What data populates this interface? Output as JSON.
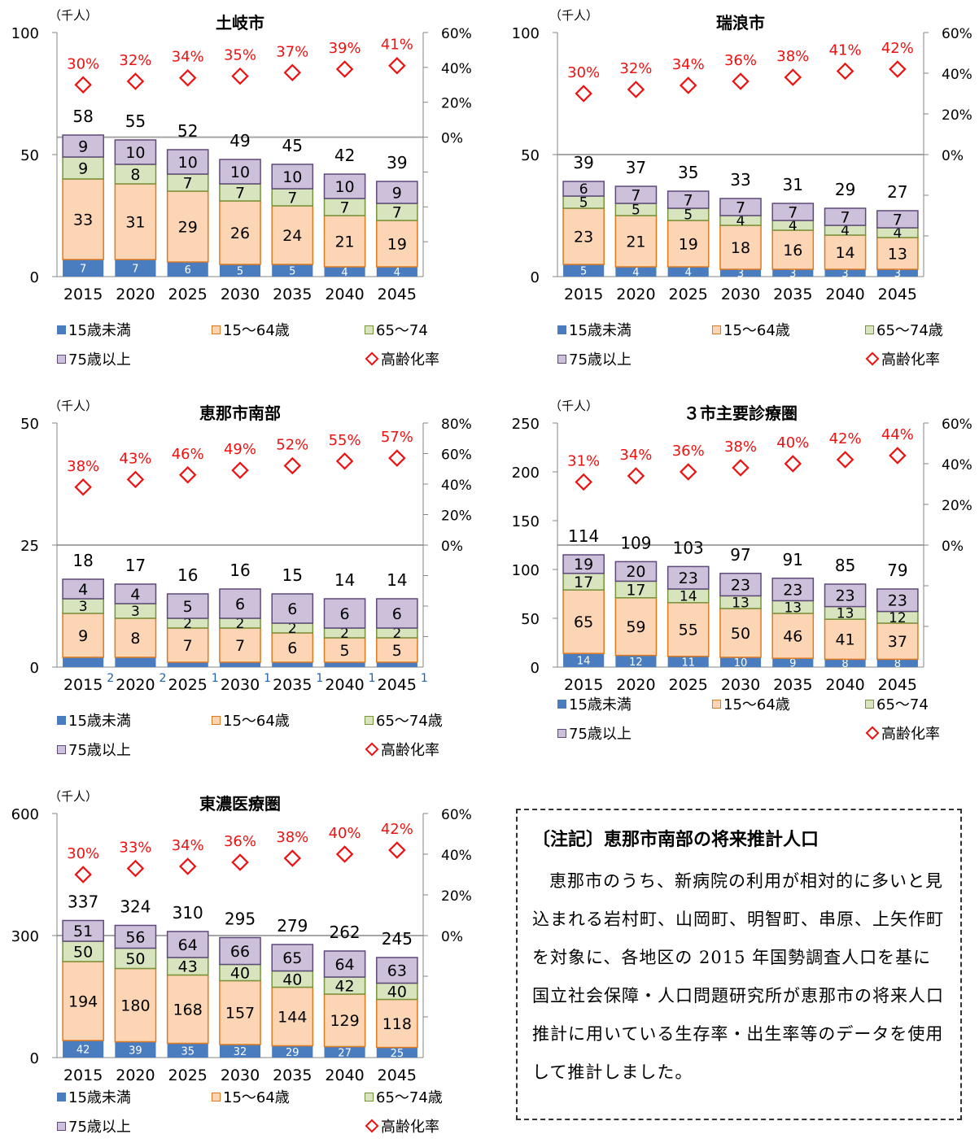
{
  "unit_label": "（千人）",
  "legend": {
    "under15": "15歳未満",
    "age15_64": "15～64歳",
    "age65_74": "65～74歳",
    "age65_74_short": "65～74",
    "over75": "75歳以上",
    "aging_rate": "高齢化率"
  },
  "colors": {
    "under15": "#4a7cc0",
    "age15_64": "#fcd5b4",
    "age15_64_border": "#e07a1f",
    "age65_74": "#d7e4bd",
    "age65_74_border": "#77933c",
    "over75": "#ccc0da",
    "over75_border": "#5f497a",
    "aging_rate": "#ee1111",
    "small_label": "#1f5fb0"
  },
  "note": {
    "title": "〔注記〕恵那市南部の将来推計人口",
    "body": "恵那市のうち、新病院の利用が相対的に多いと見込まれる岩村町、山岡町、明智町、串原、上矢作町を対象に、各地区の 2015 年国勢調査人口を基に国立社会保障・人口問題研究所が恵那市の将来人口推計に用いている生存率・出生率等のデータを使用して推計しました。"
  },
  "chart_data": [
    {
      "id": "toki",
      "type": "bar",
      "title": "土岐市",
      "categories": [
        "2015",
        "2020",
        "2025",
        "2030",
        "2035",
        "2040",
        "2045"
      ],
      "ylim": [
        0,
        100
      ],
      "yticks": [
        0,
        50,
        100
      ],
      "y2lim": [
        -80,
        60
      ],
      "y2ticks": [
        0,
        20,
        40,
        60
      ],
      "series": [
        {
          "name": "15歳未満",
          "values": [
            7,
            7,
            6,
            5,
            5,
            4,
            4
          ]
        },
        {
          "name": "15～64歳",
          "values": [
            33,
            31,
            29,
            26,
            24,
            21,
            19
          ]
        },
        {
          "name": "65～74歳",
          "values": [
            9,
            8,
            7,
            7,
            7,
            7,
            7
          ]
        },
        {
          "name": "75歳以上",
          "values": [
            9,
            10,
            10,
            10,
            10,
            10,
            9
          ]
        }
      ],
      "totals": [
        58,
        55,
        52,
        49,
        45,
        42,
        39
      ],
      "aging_rate": [
        30,
        32,
        34,
        35,
        37,
        39,
        41
      ],
      "legend_65_74_label": "65～74"
    },
    {
      "id": "mizunami",
      "type": "bar",
      "title": "瑞浪市",
      "categories": [
        "2015",
        "2020",
        "2025",
        "2030",
        "2035",
        "2040",
        "2045"
      ],
      "ylim": [
        0,
        100
      ],
      "yticks": [
        0,
        50,
        100
      ],
      "y2lim": [
        -60,
        60
      ],
      "y2ticks": [
        0,
        20,
        40,
        60
      ],
      "series": [
        {
          "name": "15歳未満",
          "values": [
            5,
            4,
            4,
            3,
            3,
            3,
            3
          ]
        },
        {
          "name": "15～64歳",
          "values": [
            23,
            21,
            19,
            18,
            16,
            14,
            13
          ]
        },
        {
          "name": "65～74歳",
          "values": [
            5,
            5,
            5,
            4,
            4,
            4,
            4
          ]
        },
        {
          "name": "75歳以上",
          "values": [
            6,
            7,
            7,
            7,
            7,
            7,
            7
          ]
        }
      ],
      "totals": [
        39,
        37,
        35,
        33,
        31,
        29,
        27
      ],
      "aging_rate": [
        30,
        32,
        34,
        36,
        38,
        41,
        42
      ]
    },
    {
      "id": "ena-south",
      "type": "bar",
      "title": "恵那市南部",
      "categories": [
        "2015",
        "2020",
        "2025",
        "2030",
        "2035",
        "2040",
        "2045"
      ],
      "ylim": [
        0,
        50
      ],
      "yticks": [
        0,
        25,
        50
      ],
      "y2lim": [
        -80,
        80
      ],
      "y2ticks": [
        0,
        20,
        40,
        60,
        80
      ],
      "series": [
        {
          "name": "15歳未満",
          "values": [
            2,
            2,
            1,
            1,
            1,
            1,
            1
          ]
        },
        {
          "name": "15～64歳",
          "values": [
            9,
            8,
            7,
            7,
            6,
            5,
            5
          ]
        },
        {
          "name": "65～74歳",
          "values": [
            3,
            3,
            2,
            2,
            2,
            2,
            2
          ]
        },
        {
          "name": "75歳以上",
          "values": [
            4,
            4,
            5,
            6,
            6,
            6,
            6
          ]
        }
      ],
      "totals": [
        18,
        17,
        16,
        16,
        15,
        14,
        14
      ],
      "aging_rate": [
        38,
        43,
        46,
        49,
        52,
        55,
        57
      ],
      "under15_outside": true
    },
    {
      "id": "three-city",
      "type": "bar",
      "title": "３市主要診療圏",
      "categories": [
        "2015",
        "2020",
        "2025",
        "2030",
        "2035",
        "2040",
        "2045"
      ],
      "ylim": [
        0,
        250
      ],
      "yticks": [
        0,
        50,
        100,
        150,
        200,
        250
      ],
      "y2lim": [
        -60,
        60
      ],
      "y2ticks": [
        0,
        20,
        40,
        60
      ],
      "series": [
        {
          "name": "15歳未満",
          "values": [
            14,
            12,
            11,
            10,
            9,
            8,
            8
          ]
        },
        {
          "name": "15～64歳",
          "values": [
            65,
            59,
            55,
            50,
            46,
            41,
            37
          ]
        },
        {
          "name": "65～74歳",
          "values": [
            17,
            17,
            14,
            13,
            13,
            13,
            12
          ]
        },
        {
          "name": "75歳以上",
          "values": [
            19,
            20,
            23,
            23,
            23,
            23,
            23
          ]
        }
      ],
      "totals": [
        114,
        109,
        103,
        97,
        91,
        85,
        79
      ],
      "aging_rate": [
        31,
        34,
        36,
        38,
        40,
        42,
        44
      ],
      "legend_65_74_label": "65～74"
    },
    {
      "id": "tono",
      "type": "bar",
      "title": "東濃医療圏",
      "categories": [
        "2015",
        "2020",
        "2025",
        "2030",
        "2035",
        "2040",
        "2045"
      ],
      "ylim": [
        0,
        600
      ],
      "yticks": [
        0,
        300,
        600
      ],
      "y2lim": [
        -60,
        60
      ],
      "y2ticks": [
        0,
        20,
        40,
        60
      ],
      "series": [
        {
          "name": "15歳未満",
          "values": [
            42,
            39,
            35,
            32,
            29,
            27,
            25
          ]
        },
        {
          "name": "15～64歳",
          "values": [
            194,
            180,
            168,
            157,
            144,
            129,
            118
          ]
        },
        {
          "name": "65～74歳",
          "values": [
            50,
            50,
            43,
            40,
            40,
            42,
            40
          ]
        },
        {
          "name": "75歳以上",
          "values": [
            51,
            56,
            64,
            66,
            65,
            64,
            63
          ]
        }
      ],
      "totals": [
        337,
        324,
        310,
        295,
        279,
        262,
        245
      ],
      "aging_rate": [
        30,
        33,
        34,
        36,
        38,
        40,
        42
      ]
    }
  ]
}
